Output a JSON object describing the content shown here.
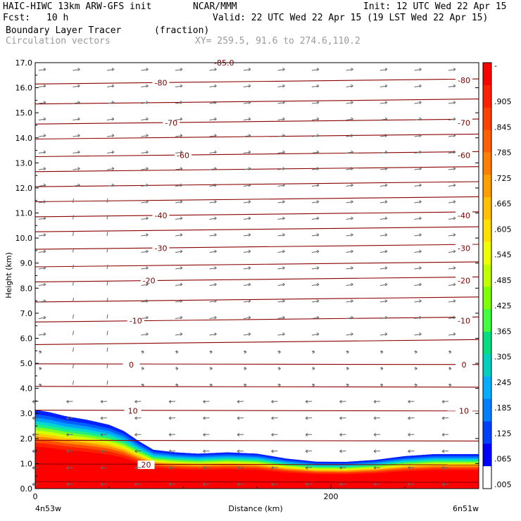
{
  "header": {
    "model": "HAIC-HIWC 13km ARW-GFS init",
    "org": "NCAR/MMM",
    "init": "Init: 12 UTC Wed 22 Apr 15",
    "fcst_label": "Fcst:",
    "fcst_value": "10 h",
    "valid": "Valid: 22 UTC Wed 22 Apr 15 (19 LST Wed 22 Apr 15)",
    "field": "Boundary Layer Tracer",
    "field_units": "(fraction)",
    "field2": "Circulation vectors",
    "xy": "XY= 259.5, 91.6 to 274.6,110.2"
  },
  "chart_data": {
    "type": "heatmap",
    "ylabel": "Height (km)",
    "xlabel": "Distance (km)",
    "x_left_label": "4n53w",
    "x_right_label": "6n51w",
    "x_tick_labels": [
      "0",
      "200"
    ],
    "x_ticks": [
      0,
      200
    ],
    "xlim": [
      0,
      300
    ],
    "ylim": [
      0,
      17
    ],
    "y_tick_labels": [
      "0.0",
      "1.0",
      "2.0",
      "3.0",
      "4.0",
      "5.0",
      "6.0",
      "7.0",
      "8.0",
      "9.0",
      "10.0",
      "11.0",
      "12.0",
      "13.0",
      "14.0",
      "15.0",
      "16.0",
      "17.0"
    ],
    "top_partial_label": "-85.0",
    "tracer_top_km": [
      [
        0,
        3.15
      ],
      [
        10,
        3.05
      ],
      [
        20,
        2.9
      ],
      [
        35,
        2.75
      ],
      [
        50,
        2.55
      ],
      [
        60,
        2.3
      ],
      [
        70,
        1.9
      ],
      [
        80,
        1.55
      ],
      [
        95,
        1.45
      ],
      [
        110,
        1.4
      ],
      [
        130,
        1.45
      ],
      [
        150,
        1.4
      ],
      [
        170,
        1.2
      ],
      [
        190,
        1.08
      ],
      [
        210,
        1.07
      ],
      [
        230,
        1.15
      ],
      [
        250,
        1.3
      ],
      [
        270,
        1.38
      ],
      [
        300,
        1.38
      ]
    ],
    "contour_labels": [
      {
        "label": "-80",
        "x": 85,
        "y": 16.2
      },
      {
        "label": "-80",
        "x": 290,
        "y": 16.3
      },
      {
        "label": "-70",
        "x": 92,
        "y": 14.6
      },
      {
        "label": "-70",
        "x": 290,
        "y": 14.6
      },
      {
        "label": "-60",
        "x": 100,
        "y": 13.3
      },
      {
        "label": "-60",
        "x": 290,
        "y": 13.3
      },
      {
        "label": "-40",
        "x": 85,
        "y": 10.9
      },
      {
        "label": "-40",
        "x": 290,
        "y": 10.9
      },
      {
        "label": "-30",
        "x": 85,
        "y": 9.6
      },
      {
        "label": "-30",
        "x": 290,
        "y": 9.6
      },
      {
        "label": "-20",
        "x": 77,
        "y": 8.3
      },
      {
        "label": "-20",
        "x": 290,
        "y": 8.3
      },
      {
        "label": "-10",
        "x": 68,
        "y": 6.7
      },
      {
        "label": "-10",
        "x": 290,
        "y": 6.7
      },
      {
        "label": "0",
        "x": 65,
        "y": 4.95
      },
      {
        "label": "0",
        "x": 290,
        "y": 4.95
      },
      {
        "label": "10",
        "x": 66,
        "y": 3.1
      },
      {
        "label": "10",
        "x": 290,
        "y": 3.1
      },
      {
        "label": "20",
        "x": 75,
        "y": 0.95
      }
    ],
    "contour_levels_km": [
      0.25,
      0.95,
      1.9,
      3.1,
      4.05,
      4.95,
      5.8,
      6.7,
      7.5,
      8.3,
      8.9,
      9.6,
      10.3,
      10.9,
      11.5,
      12.1,
      12.7,
      13.3,
      14.0,
      14.6,
      15.4,
      16.2
    ],
    "colorbar": {
      "labels": [
        "-",
        ".905",
        ".845",
        ".785",
        ".725",
        ".665",
        ".605",
        ".545",
        ".485",
        ".425",
        ".365",
        ".305",
        ".245",
        ".185",
        ".125",
        ".065",
        ".005"
      ],
      "colors": [
        "#ff0000",
        "#ff2000",
        "#ff4000",
        "#ff6000",
        "#ff8000",
        "#ffa000",
        "#ffc000",
        "#ffe000",
        "#f0ff00",
        "#c0ff00",
        "#80ff00",
        "#40ff40",
        "#00e080",
        "#00d0c0",
        "#00b0ff",
        "#0080ff",
        "#0040ff",
        "#0000ff",
        "#ffffff"
      ]
    },
    "wind_vectors": "rightward aloft, leftward in lowest 4 km"
  }
}
